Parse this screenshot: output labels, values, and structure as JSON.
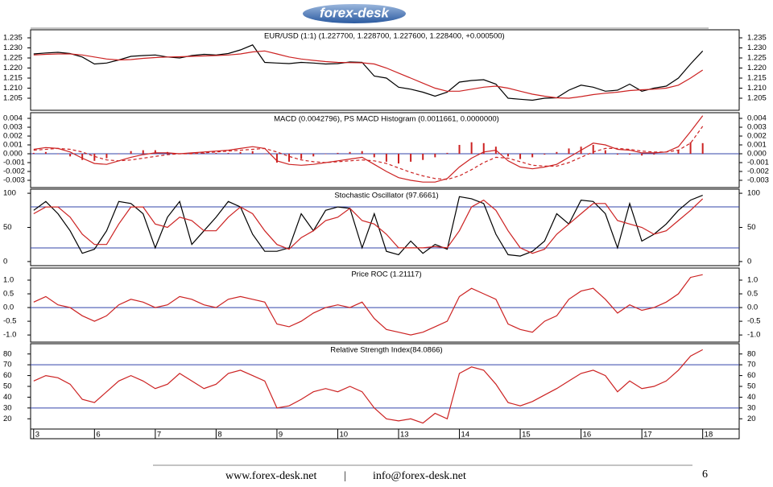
{
  "header": {
    "logo": "forex-desk"
  },
  "x_axis": {
    "x": [
      0,
      0.2,
      0.4,
      0.6,
      0.8,
      1,
      1.2,
      1.4,
      1.6,
      1.8,
      2,
      2.2,
      2.4,
      2.6,
      2.8,
      3,
      3.2,
      3.4,
      3.6,
      3.8,
      4,
      4.2,
      4.4,
      4.6,
      4.8,
      5,
      5.2,
      5.4,
      5.6,
      5.8,
      6,
      6.2,
      6.4,
      6.6,
      6.8,
      7,
      7.2,
      7.4,
      7.6,
      7.8,
      8,
      8.2,
      8.4,
      8.6,
      8.8,
      9,
      9.2,
      9.4,
      9.6,
      9.8,
      10,
      10.2,
      10.4,
      10.6,
      10.8,
      11
    ],
    "xlim": [
      -0.05,
      11.6
    ],
    "xticks": [
      {
        "value": 0,
        "label": "3"
      },
      {
        "value": 1,
        "label": "6"
      },
      {
        "value": 2,
        "label": "7"
      },
      {
        "value": 3,
        "label": "8"
      },
      {
        "value": 4,
        "label": "9"
      },
      {
        "value": 5,
        "label": "10"
      },
      {
        "value": 6,
        "label": "13"
      },
      {
        "value": 7,
        "label": "14"
      },
      {
        "value": 8,
        "label": "15"
      },
      {
        "value": 9,
        "label": "16"
      },
      {
        "value": 10,
        "label": "17"
      },
      {
        "value": 11,
        "label": "18"
      }
    ]
  },
  "chart_data": [
    {
      "type": "line",
      "title": "EUR/USD (1:1) (1.227700, 1.228700, 1.227600, 1.228400, +0.000500)",
      "ylim": [
        1.199,
        1.239
      ],
      "yticks": [
        1.205,
        1.21,
        1.215,
        1.22,
        1.225,
        1.23,
        1.235
      ],
      "yticklabels": [
        "1.205",
        "1.210",
        "1.215",
        "1.220",
        "1.225",
        "1.230",
        "1.235"
      ],
      "series": [
        {
          "color": "#000000",
          "kind": "line",
          "values": [
            1.227,
            1.2275,
            1.2278,
            1.2272,
            1.2255,
            1.222,
            1.2225,
            1.224,
            1.2258,
            1.2262,
            1.2265,
            1.2255,
            1.225,
            1.2262,
            1.2268,
            1.2265,
            1.2272,
            1.229,
            1.2315,
            1.2228,
            1.2225,
            1.2222,
            1.2228,
            1.2225,
            1.222,
            1.2222,
            1.223,
            1.2228,
            1.216,
            1.215,
            1.2105,
            1.2095,
            1.208,
            1.206,
            1.208,
            1.213,
            1.2138,
            1.2142,
            1.212,
            1.205,
            1.2045,
            1.204,
            1.205,
            1.2052,
            1.209,
            1.2115,
            1.2105,
            1.2085,
            1.209,
            1.212,
            1.2085,
            1.21,
            1.211,
            1.215,
            1.222,
            1.2285
          ]
        },
        {
          "color": "#cc2222",
          "kind": "line",
          "values": [
            1.2265,
            1.2268,
            1.227,
            1.227,
            1.2265,
            1.2255,
            1.2245,
            1.224,
            1.2242,
            1.2248,
            1.2252,
            1.2255,
            1.2256,
            1.2258,
            1.226,
            1.2262,
            1.2265,
            1.227,
            1.228,
            1.2285,
            1.227,
            1.2255,
            1.2245,
            1.2238,
            1.2232,
            1.2228,
            1.2227,
            1.2226,
            1.222,
            1.22,
            1.2175,
            1.215,
            1.2125,
            1.21,
            1.2085,
            1.2085,
            1.2095,
            1.2105,
            1.211,
            1.21,
            1.2085,
            1.207,
            1.206,
            1.2052,
            1.205,
            1.2058,
            1.2068,
            1.2075,
            1.208,
            1.2088,
            1.2092,
            1.2095,
            1.21,
            1.2115,
            1.215,
            1.219
          ]
        }
      ]
    },
    {
      "type": "line",
      "title": "MACD (0.0042796), PS MACD Histogram (0.0011661, 0.0000000)",
      "ylim": [
        -0.00382,
        0.00464
      ],
      "yticks": [
        -0.003,
        -0.002,
        -0.001,
        {
          "value": 0,
          "label": "0.000"
        },
        0.001,
        0.002,
        0.003,
        0.004
      ],
      "hlines": [
        0
      ],
      "series": [
        {
          "color": "#cc2222",
          "kind": "bar",
          "values": [
            0.0001,
            0.0002,
            0,
            -0.0003,
            -0.0007,
            -0.0008,
            -0.0005,
            0,
            0.0003,
            0.0004,
            0.0004,
            0.0002,
            0,
            0.0001,
            0.0001,
            0.0001,
            0.0001,
            0.0002,
            0.0003,
            0,
            -0.001,
            -0.0009,
            -0.0006,
            -0.0003,
            0,
            0.0001,
            0.0002,
            0.0003,
            -0.0004,
            -0.0009,
            -0.0011,
            -0.0009,
            -0.0007,
            -0.0004,
            0.0001,
            0.001,
            0.0013,
            0.0012,
            0.0008,
            -0.0003,
            -0.0006,
            -0.0004,
            -0.0001,
            0.0002,
            0.0006,
            0.0008,
            0.001,
            0.0004,
            -0.0001,
            -0.0001,
            -0.0002,
            -0.0001,
            0,
            0.0004,
            0.0013,
            0.0012
          ]
        },
        {
          "color": "#cc2222",
          "kind": "line",
          "values": [
            0.0005,
            0.0007,
            0.0006,
            0.0002,
            -0.0005,
            -0.0011,
            -0.0012,
            -0.0008,
            -0.0004,
            -0.0001,
            0.0001,
            0.0001,
            0,
            0.0001,
            0.0002,
            0.0003,
            0.0004,
            0.0006,
            0.0008,
            0.0006,
            -0.0008,
            -0.0012,
            -0.0013,
            -0.0012,
            -0.001,
            -0.0008,
            -0.0006,
            -0.0004,
            -0.0012,
            -0.002,
            -0.0027,
            -0.003,
            -0.0032,
            -0.0032,
            -0.0028,
            -0.0015,
            -0.0005,
            0.0002,
            0.0004,
            -0.0008,
            -0.0015,
            -0.0017,
            -0.0015,
            -0.0012,
            -0.0004,
            0.0004,
            0.0012,
            0.001,
            0.0005,
            0.0004,
            0.0001,
            0.0001,
            0.0002,
            0.0008,
            0.0025,
            0.0043
          ]
        },
        {
          "color": "#cc2222",
          "kind": "line",
          "dash": true,
          "values": [
            0.0004,
            0.0005,
            0.0006,
            0.0005,
            0.0002,
            -0.0003,
            -0.0007,
            -0.0008,
            -0.0007,
            -0.0005,
            -0.0003,
            -0.0001,
            0,
            0,
            0.0001,
            0.0002,
            0.0003,
            0.0004,
            0.0005,
            0.0006,
            0.0002,
            -0.0003,
            -0.0007,
            -0.0009,
            -0.001,
            -0.0009,
            -0.0008,
            -0.0007,
            -0.0008,
            -0.0011,
            -0.0016,
            -0.0021,
            -0.0025,
            -0.0028,
            -0.0029,
            -0.0025,
            -0.0018,
            -0.001,
            -0.0004,
            -0.0005,
            -0.0009,
            -0.0013,
            -0.0014,
            -0.0014,
            -0.001,
            -0.0004,
            0.0002,
            0.0006,
            0.0006,
            0.0005,
            0.0003,
            0.0002,
            0.0002,
            0.0004,
            0.0012,
            0.0031
          ]
        }
      ]
    },
    {
      "type": "line",
      "title": "Stochastic Oscillator (97.6661)",
      "ylim": [
        -6,
        106
      ],
      "yticks": [
        0,
        50,
        100
      ],
      "hlines": [
        80,
        20
      ],
      "series": [
        {
          "color": "#000000",
          "kind": "line",
          "values": [
            75,
            88,
            70,
            45,
            12,
            18,
            45,
            88,
            85,
            70,
            20,
            65,
            88,
            25,
            45,
            65,
            88,
            80,
            40,
            15,
            15,
            20,
            70,
            45,
            75,
            80,
            78,
            20,
            70,
            15,
            10,
            30,
            12,
            25,
            18,
            95,
            92,
            85,
            40,
            10,
            8,
            15,
            30,
            70,
            55,
            90,
            88,
            70,
            20,
            85,
            30,
            40,
            55,
            75,
            90,
            97
          ]
        },
        {
          "color": "#cc2222",
          "kind": "line",
          "values": [
            70,
            80,
            80,
            65,
            40,
            25,
            25,
            55,
            80,
            80,
            55,
            50,
            65,
            60,
            45,
            45,
            65,
            80,
            70,
            45,
            25,
            18,
            35,
            45,
            60,
            65,
            78,
            60,
            55,
            40,
            20,
            20,
            20,
            22,
            20,
            45,
            80,
            90,
            75,
            45,
            20,
            12,
            18,
            40,
            55,
            70,
            85,
            85,
            60,
            55,
            50,
            40,
            45,
            60,
            75,
            92
          ]
        }
      ]
    },
    {
      "type": "line",
      "title": "Price ROC (1.21117)",
      "ylim": [
        -1.26,
        1.44
      ],
      "yticks": [
        {
          "value": -1,
          "label": "-1.0"
        },
        {
          "value": -0.5,
          "label": "-0.5"
        },
        {
          "value": 0,
          "label": "0.0"
        },
        {
          "value": 0.5,
          "label": "0.5"
        },
        {
          "value": 1,
          "label": "1.0"
        }
      ],
      "hlines": [
        0
      ],
      "series": [
        {
          "color": "#cc2222",
          "kind": "line",
          "values": [
            0.2,
            0.4,
            0.1,
            0,
            -0.3,
            -0.5,
            -0.3,
            0.1,
            0.3,
            0.2,
            0,
            0.1,
            0.4,
            0.3,
            0.1,
            0,
            0.3,
            0.4,
            0.3,
            0.2,
            -0.6,
            -0.7,
            -0.5,
            -0.2,
            0,
            0.1,
            0,
            0.2,
            -0.4,
            -0.8,
            -0.9,
            -1,
            -0.9,
            -0.7,
            -0.5,
            0.4,
            0.7,
            0.5,
            0.3,
            -0.6,
            -0.8,
            -0.9,
            -0.5,
            -0.3,
            0.3,
            0.6,
            0.7,
            0.3,
            -0.2,
            0.1,
            -0.1,
            0,
            0.2,
            0.5,
            1.1,
            1.2
          ]
        }
      ]
    },
    {
      "type": "line",
      "title": "Relative Strength Index(84.0866)",
      "ylim": [
        10.5,
        89.5
      ],
      "yticks": [
        20,
        30,
        40,
        50,
        60,
        70,
        80
      ],
      "hlines": [
        70,
        30
      ],
      "series": [
        {
          "color": "#cc2222",
          "kind": "line",
          "values": [
            55,
            60,
            58,
            52,
            38,
            35,
            45,
            55,
            60,
            55,
            48,
            52,
            62,
            55,
            48,
            52,
            62,
            65,
            60,
            55,
            30,
            32,
            38,
            45,
            48,
            45,
            50,
            45,
            30,
            20,
            18,
            20,
            16,
            25,
            20,
            62,
            68,
            65,
            52,
            35,
            32,
            36,
            42,
            48,
            55,
            62,
            65,
            60,
            45,
            55,
            48,
            50,
            55,
            65,
            78,
            84
          ]
        }
      ]
    }
  ],
  "footer": {
    "website": "www.forex-desk.net",
    "separator": "|",
    "email": "info@forex-desk.net",
    "page": "6"
  }
}
